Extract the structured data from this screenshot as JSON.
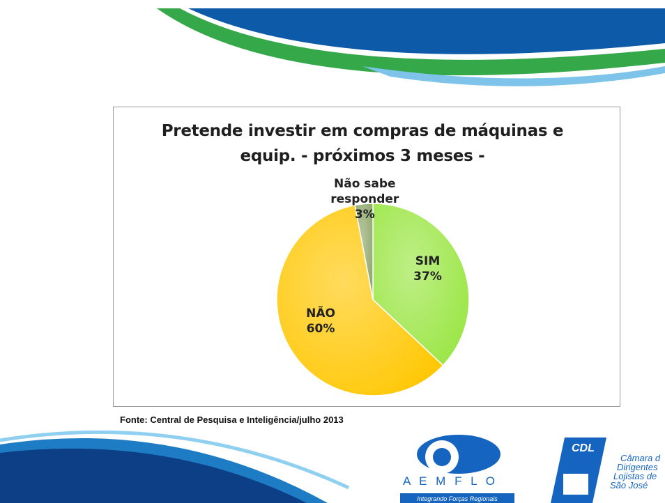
{
  "chart_data": {
    "type": "pie",
    "title": "Pretende investir em compras de máquinas e equip. - próximos 3 meses -",
    "categories": [
      "SIM",
      "NÃO",
      "Não sabe responder"
    ],
    "values": [
      37,
      60,
      3
    ],
    "value_labels": [
      "37%",
      "60%",
      "3%"
    ],
    "colors": [
      "#9be646",
      "#ffc807",
      "#8fa86c"
    ],
    "source": "Fonte: Central de Pesquisa e Inteligência/julho 2013"
  },
  "logos": {
    "aemflo": "A E M F L O",
    "aemflo_tagline": "Integrando Forças Regionais",
    "cdl": "CDL",
    "cdl_lines": [
      "Câmara d",
      "Dirigentes",
      "Lojistas de",
      "São José"
    ]
  }
}
